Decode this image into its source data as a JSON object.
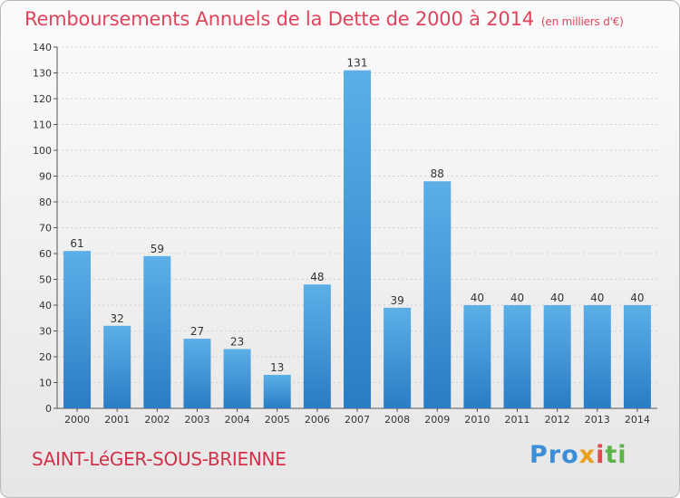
{
  "page": {
    "title": "Remboursements Annuels de la Dette de 2000 à 2014",
    "title_unit": "(en milliers d'€)",
    "commune": "SAINT-LéGER-SOUS-BRIENNE",
    "logo": {
      "text": "Proxiti",
      "part1": "Pro",
      "part2": "x",
      "part3": "i",
      "part4": "ti"
    }
  },
  "colors": {
    "title": "#e0445c",
    "bar_light": "#5dafe8",
    "bar_dark": "#2a7cc4",
    "grid": "#cfcfcf"
  },
  "chart_data": {
    "type": "bar",
    "categories": [
      "2000",
      "2001",
      "2002",
      "2003",
      "2004",
      "2005",
      "2006",
      "2007",
      "2008",
      "2009",
      "2010",
      "2011",
      "2012",
      "2013",
      "2014"
    ],
    "values": [
      61,
      32,
      59,
      27,
      23,
      13,
      48,
      131,
      39,
      88,
      40,
      40,
      40,
      40,
      40
    ],
    "ylim": [
      0,
      140
    ],
    "yticks": [
      0,
      10,
      20,
      30,
      40,
      50,
      60,
      70,
      80,
      90,
      100,
      110,
      120,
      130,
      140
    ],
    "grid": true,
    "legend": "none"
  }
}
